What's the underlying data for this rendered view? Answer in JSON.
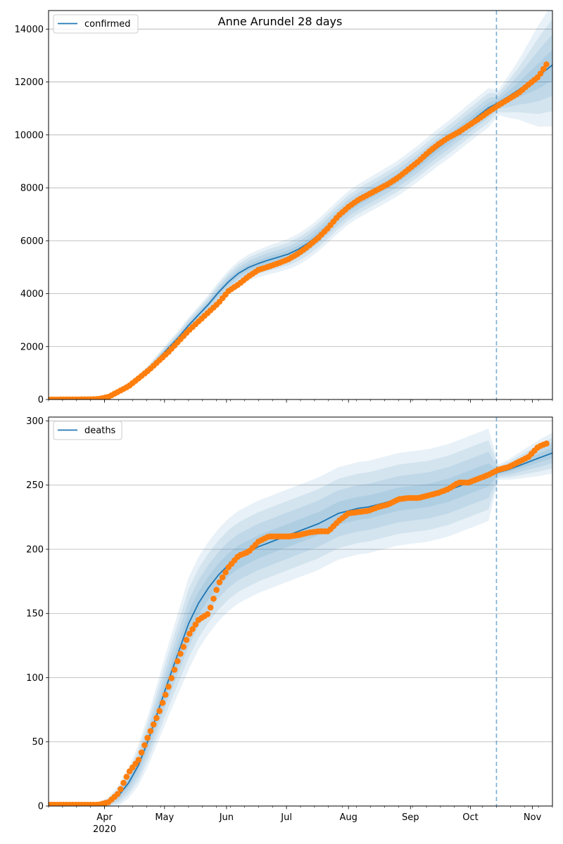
{
  "chart_data": [
    {
      "type": "line",
      "title": "Anne Arundel 28 days",
      "legend": {
        "label": "confirmed",
        "placement": "top-left"
      },
      "grid": "y",
      "ylim": [
        0,
        14700
      ],
      "yticks": [
        0,
        2000,
        4000,
        6000,
        8000,
        10000,
        12000,
        14000
      ],
      "ytick_labels": [
        "0",
        "2000",
        "4000",
        "6000",
        "8000",
        "10000",
        "12000",
        "14000"
      ],
      "vline_day": 224,
      "colors": {
        "model": "#1f77b4",
        "observed": "#ff7f0e",
        "band": "#1f77b4"
      },
      "model_x": [
        0,
        20,
        25,
        30,
        35,
        40,
        45,
        50,
        55,
        60,
        65,
        70,
        75,
        80,
        85,
        90,
        95,
        100,
        105,
        110,
        115,
        120,
        125,
        130,
        135,
        140,
        145,
        150,
        155,
        160,
        165,
        170,
        175,
        180,
        185,
        190,
        195,
        200,
        205,
        210,
        215,
        220,
        225,
        230,
        235,
        240,
        245,
        252
      ],
      "model_y": [
        0,
        10,
        50,
        120,
        250,
        500,
        800,
        1150,
        1550,
        1950,
        2350,
        2800,
        3200,
        3600,
        4050,
        4450,
        4770,
        4990,
        5140,
        5270,
        5380,
        5500,
        5680,
        5920,
        6220,
        6560,
        6920,
        7250,
        7500,
        7720,
        7930,
        8150,
        8380,
        8650,
        8930,
        9240,
        9540,
        9820,
        10120,
        10430,
        10730,
        11020,
        11220,
        11450,
        11700,
        11960,
        12230,
        12640
      ],
      "band_half_width": [
        [
          0,
          2,
          6,
          10,
          16,
          24,
          32,
          40,
          50,
          58,
          66,
          74,
          82,
          90,
          100,
          108,
          116,
          124,
          130,
          136,
          140,
          144,
          148,
          150,
          152,
          154,
          156,
          158,
          160,
          162,
          164,
          166,
          168,
          170,
          172,
          174,
          176,
          178,
          180,
          182,
          184,
          186,
          120,
          200,
          280,
          380,
          480,
          580
        ],
        [
          0,
          4,
          12,
          20,
          32,
          48,
          64,
          80,
          100,
          116,
          132,
          148,
          164,
          180,
          200,
          216,
          232,
          248,
          260,
          272,
          280,
          288,
          296,
          300,
          304,
          308,
          312,
          316,
          320,
          324,
          328,
          332,
          336,
          340,
          344,
          348,
          352,
          356,
          360,
          364,
          368,
          372,
          240,
          400,
          560,
          760,
          960,
          1160
        ],
        [
          0,
          6,
          18,
          30,
          48,
          72,
          96,
          120,
          150,
          174,
          198,
          222,
          246,
          270,
          300,
          324,
          348,
          372,
          390,
          408,
          420,
          432,
          444,
          450,
          456,
          462,
          468,
          474,
          480,
          486,
          492,
          498,
          504,
          510,
          516,
          522,
          528,
          534,
          540,
          546,
          552,
          558,
          360,
          600,
          840,
          1140,
          1440,
          1740
        ],
        [
          0,
          8,
          24,
          40,
          64,
          96,
          128,
          160,
          200,
          232,
          264,
          296,
          328,
          360,
          400,
          432,
          464,
          496,
          520,
          544,
          560,
          576,
          592,
          600,
          608,
          616,
          624,
          632,
          640,
          648,
          656,
          664,
          672,
          680,
          688,
          696,
          704,
          712,
          720,
          728,
          736,
          744,
          480,
          800,
          1120,
          1520,
          1920,
          2320
        ]
      ],
      "observed_x": [
        0,
        20,
        25,
        30,
        35,
        40,
        45,
        50,
        55,
        60,
        65,
        70,
        75,
        80,
        85,
        90,
        95,
        100,
        105,
        110,
        115,
        120,
        125,
        130,
        135,
        140,
        145,
        150,
        155,
        160,
        165,
        170,
        175,
        180,
        185,
        190,
        195,
        200,
        205,
        210,
        215,
        220,
        225,
        230,
        235,
        240,
        245,
        250
      ],
      "observed_y": [
        0,
        5,
        20,
        100,
        300,
        500,
        800,
        1100,
        1450,
        1800,
        2200,
        2600,
        2950,
        3300,
        3650,
        4100,
        4350,
        4650,
        4900,
        5020,
        5150,
        5300,
        5520,
        5800,
        6120,
        6500,
        6950,
        7280,
        7550,
        7750,
        7950,
        8150,
        8400,
        8700,
        9000,
        9350,
        9650,
        9900,
        10100,
        10350,
        10600,
        10870,
        11120,
        11350,
        11580,
        11900,
        12200,
        12780
      ]
    },
    {
      "type": "line",
      "legend": {
        "label": "deaths",
        "placement": "top-left"
      },
      "grid": "y",
      "ylim": [
        0,
        303
      ],
      "yticks": [
        0,
        50,
        100,
        150,
        200,
        250,
        300
      ],
      "ytick_labels": [
        "0",
        "50",
        "100",
        "150",
        "200",
        "250",
        "300"
      ],
      "xticks_days": [
        28,
        58,
        89,
        119,
        150,
        181,
        211,
        242
      ],
      "xtick_labels": [
        "Apr",
        "May",
        "Jun",
        "Jul",
        "Aug",
        "Sep",
        "Oct",
        "Nov"
      ],
      "xtick_sublabel": {
        "index": 0,
        "text": "2020"
      },
      "xlim_days": [
        0,
        252
      ],
      "vline_day": 224,
      "colors": {
        "model": "#1f77b4",
        "observed": "#ff7f0e",
        "band": "#1f77b4"
      },
      "model_x": [
        0,
        25,
        30,
        35,
        40,
        45,
        50,
        55,
        60,
        65,
        70,
        75,
        80,
        85,
        90,
        95,
        100,
        105,
        110,
        115,
        120,
        125,
        130,
        135,
        140,
        145,
        150,
        155,
        160,
        165,
        170,
        175,
        180,
        185,
        190,
        195,
        200,
        205,
        210,
        215,
        220,
        225,
        230,
        235,
        240,
        245,
        252
      ],
      "model_y": [
        0,
        0.5,
        3,
        8,
        18,
        32,
        52,
        75,
        98,
        120,
        142,
        158,
        170,
        180,
        188,
        194,
        198,
        202,
        205,
        208,
        211,
        214,
        217,
        220,
        224,
        228,
        230,
        232,
        233,
        235,
        237,
        239,
        240,
        241,
        242,
        244,
        246,
        249,
        252,
        255,
        258,
        260,
        262,
        265,
        268,
        271,
        275
      ],
      "band_half_width": [
        [
          0,
          0.5,
          1,
          2,
          3,
          4,
          5,
          6,
          7,
          8,
          9,
          9,
          9,
          9,
          9,
          9,
          9,
          9,
          9,
          9,
          9,
          9,
          9,
          9,
          9,
          9,
          9,
          9,
          9,
          9,
          9,
          9,
          9,
          9,
          9,
          9,
          9,
          9,
          9,
          9,
          9,
          1.5,
          2,
          2.5,
          3,
          3.5,
          4
        ],
        [
          0,
          1,
          2,
          4,
          6,
          8,
          10,
          12,
          14,
          16,
          18,
          18,
          18,
          18,
          18,
          18,
          18,
          18,
          18,
          18,
          18,
          18,
          18,
          18,
          18,
          18,
          18,
          18,
          18,
          18,
          18,
          18,
          18,
          18,
          18,
          18,
          18,
          18,
          18,
          18,
          18,
          3,
          4,
          5,
          6,
          7,
          8
        ],
        [
          0,
          1.5,
          3,
          6,
          9,
          12,
          15,
          18,
          21,
          24,
          27,
          27,
          27,
          27,
          27,
          27,
          27,
          27,
          27,
          27,
          27,
          27,
          27,
          27,
          27,
          27,
          27,
          27,
          27,
          27,
          27,
          27,
          27,
          27,
          27,
          27,
          27,
          27,
          27,
          27,
          27,
          4.5,
          6,
          7.5,
          9,
          10.5,
          12
        ],
        [
          0,
          2,
          4,
          8,
          12,
          16,
          20,
          24,
          28,
          32,
          36,
          36,
          36,
          36,
          36,
          36,
          36,
          36,
          36,
          36,
          36,
          36,
          36,
          36,
          36,
          36,
          36,
          36,
          36,
          36,
          36,
          36,
          36,
          36,
          36,
          36,
          36,
          36,
          36,
          36,
          36,
          6,
          8,
          10,
          12,
          14,
          16
        ]
      ],
      "observed_x": [
        0,
        20,
        25,
        30,
        35,
        40,
        45,
        50,
        55,
        60,
        65,
        70,
        75,
        80,
        85,
        90,
        95,
        100,
        105,
        110,
        115,
        120,
        125,
        130,
        135,
        140,
        145,
        150,
        155,
        160,
        165,
        170,
        175,
        180,
        185,
        190,
        195,
        200,
        205,
        210,
        215,
        220,
        225,
        230,
        235,
        240,
        245,
        250
      ],
      "observed_y": [
        1,
        1,
        1,
        3,
        10,
        26,
        36,
        55,
        72,
        93,
        115,
        133,
        145,
        150,
        173,
        186,
        195,
        198,
        206,
        210,
        210,
        210,
        211,
        213,
        214,
        214,
        222,
        228,
        229,
        230,
        233,
        235,
        239,
        240,
        240,
        242,
        244,
        247,
        252,
        252,
        255,
        258,
        262,
        264,
        268,
        272,
        280,
        283
      ]
    }
  ]
}
